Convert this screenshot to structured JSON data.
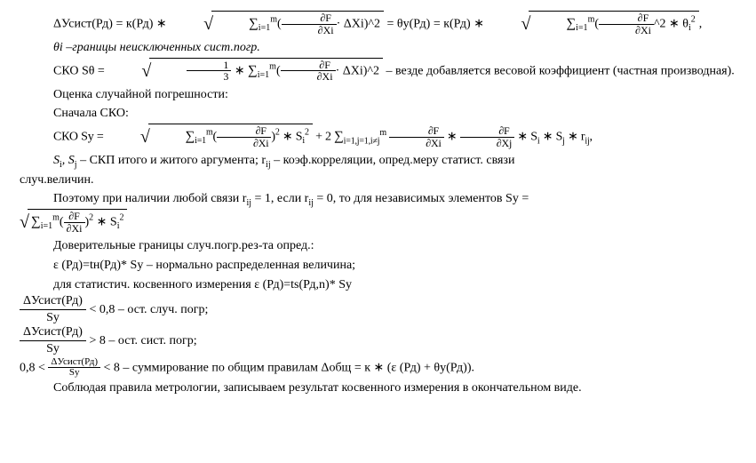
{
  "lines": {
    "l1a": "ΔУсист(Рд) = к(Рд) ∗ ",
    "l1_sum1": "∑",
    "l1_sum1_lim": "i=1",
    "l1_sum1_top": "m",
    "l1_paren1": "(",
    "l1_df_num": "∂F",
    "l1_df_den": "∂Xi",
    "l1_dx": "· ΔXi)^2",
    "l1_eq": " = θу(Рд) =  к(Рд) ∗ ",
    "l1_star": "^2 ∗ θ",
    "l1_end": ",",
    "l1_theta_sub": "i",
    "l1_theta_sup": "2",
    "l2": "θi –границы неисключенных сист.погр.",
    "l3a": "СКО Sθ = ",
    "l3_one": "1",
    "l3_three": "3",
    "l3_star": " ∗ ",
    "l3_dx": "· ΔXi)^2",
    "l3_tail": " – везде добавляется весовой коэффициент (частная производная).",
    "l4": "Оценка случайной погрешности:",
    "l5": "Сначала СКО:",
    "l6a": "СКО Sy = ",
    "l6_sq": ")",
    "l6_pow2": "2",
    "l6_star_s": " ∗ S",
    "l6_i": "i",
    "l6_plus": " + 2 ",
    "l6_sum2_lim": "i=1,j=1,i≠j",
    "l6_dfj_den": "∂Xj",
    "l6_mid": " ∗ ",
    "l6_tail": " ∗ S",
    "l6_j": "j",
    "l6_r": " ∗ r",
    "l6_ij": "ij",
    "l6_comma": ",",
    "l7a": "S",
    "l7b": ", S",
    "l7c": "  –  СКП итого и житого аргумента; r",
    "l7d": " – коэф.корреляции, опред.меру статист. связи",
    "l7e": "случ.величин.",
    "l8a": "Поэтому при наличии любой связи r",
    "l8b": " = 1, если r",
    "l8c": " = 0, то для независимых элементов Sy =",
    "l8d": " ∗ S",
    "l9": "Доверительные границы случ.погр.рез-та опред.:",
    "l10": "ε (Рд)=tн(Рд)* Sy – нормально распределенная величина;",
    "l11": "для статистич. косвенного измерения ε (Рд)=ts(Рд,n)* Sy",
    "l12_num": "ΔУсист(Рд)",
    "l12_den": "Sy",
    "l12_tail": " < 0,8 – ост. случ. погр;",
    "l13_tail": " > 8 – ост. сист. погр;",
    "l14a": "0,8 < ",
    "l14b": " < 8 – суммирование по общим правилам Δобщ = к ∗ (ε (Рд) + θу(Рд)).",
    "l15": "Соблюдая правила метрологии, записываем результат косвенного измерения в окончательном виде."
  }
}
